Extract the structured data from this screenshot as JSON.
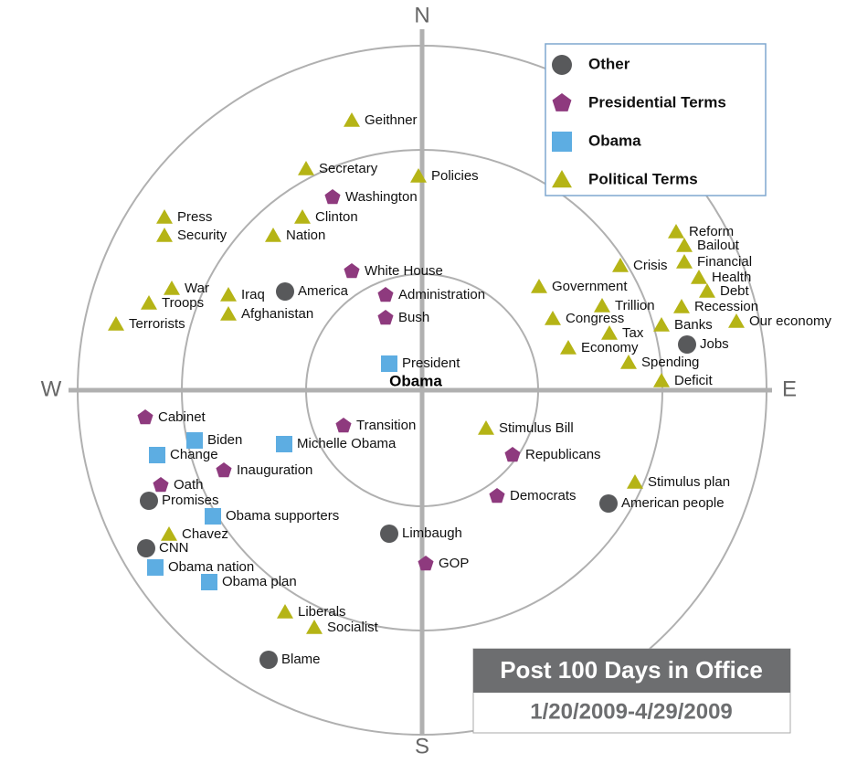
{
  "chart_data": {
    "type": "scatter",
    "compass": {
      "n": "N",
      "s": "S",
      "e": "E",
      "w": "W"
    },
    "center_label": "Obama",
    "title": "Post 100 Days in Office",
    "subtitle": "1/20/2009-4/29/2009",
    "xlim": [
      -390,
      390
    ],
    "ylim": [
      -390,
      390
    ],
    "series": [
      {
        "name": "Other",
        "color": "#58595b",
        "marker": "circle",
        "labels": [
          "America",
          "Jobs",
          "American people",
          "Promises",
          "CNN",
          "Limbaugh",
          "Blame"
        ],
        "x": [
          -150,
          290,
          204,
          -299,
          -302,
          -36,
          -168
        ],
        "y": [
          108,
          50,
          -124,
          -121,
          -173,
          -157,
          -295
        ]
      },
      {
        "name": "Presidential Terms",
        "color": "#8e3a7e",
        "marker": "pentagon",
        "labels": [
          "Washington",
          "White House",
          "Administration",
          "Bush",
          "Cabinet",
          "Transition",
          "Inauguration",
          "Oath",
          "Republicans",
          "Democrats",
          "GOP"
        ],
        "x": [
          -98,
          -77,
          -40,
          -40,
          -303,
          -86,
          -217,
          -286,
          99,
          82,
          4
        ],
        "y": [
          211,
          130,
          104,
          79,
          -30,
          -39,
          -88,
          -104,
          -71,
          -116,
          -190
        ]
      },
      {
        "name": "Obama",
        "color": "#5dade2",
        "marker": "square",
        "labels": [
          "President",
          "Biden",
          "Change",
          "Michelle Obama",
          "Obama supporters",
          "Obama nation",
          "Obama plan"
        ],
        "x": [
          -36,
          -249,
          -290,
          -151,
          -229,
          -292,
          -233
        ],
        "y": [
          29,
          -55,
          -71,
          -59,
          -138,
          -194,
          -210
        ]
      },
      {
        "name": "Political Terms",
        "color": "#b5b416",
        "marker": "triangle",
        "labels": [
          "Geithner",
          "Secretary",
          "Policies",
          "Clinton",
          "Nation",
          "Press",
          "Security",
          "War",
          "Troops",
          "Terrorists",
          "Iraq",
          "Afghanistan",
          "Government",
          "Crisis",
          "Reform",
          "Bailout",
          "Financial",
          "Health",
          "Debt",
          "Recession",
          "Trillion",
          "Congress",
          "Tax",
          "Banks",
          "Our economy",
          "Economy",
          "Spending",
          "Deficit",
          "Stimulus Bill",
          "Stimulus plan",
          "Chavez",
          "Liberals",
          "Socialist"
        ],
        "x": [
          -77,
          -127,
          -4,
          -131,
          -163,
          -282,
          -282,
          -274,
          -299,
          -335,
          -212,
          -212,
          128,
          217,
          278,
          287,
          287,
          303,
          312,
          284,
          197,
          143,
          205,
          262,
          344,
          160,
          226,
          262,
          70,
          233,
          -277,
          -150,
          -118
        ],
        "y": [
          295,
          242,
          234,
          189,
          169,
          189,
          169,
          111,
          95,
          72,
          104,
          83,
          113,
          136,
          173,
          158,
          140,
          123,
          108,
          91,
          92,
          78,
          62,
          71,
          75,
          46,
          30,
          10,
          -42,
          -101,
          -158,
          -243,
          -260
        ]
      }
    ]
  }
}
